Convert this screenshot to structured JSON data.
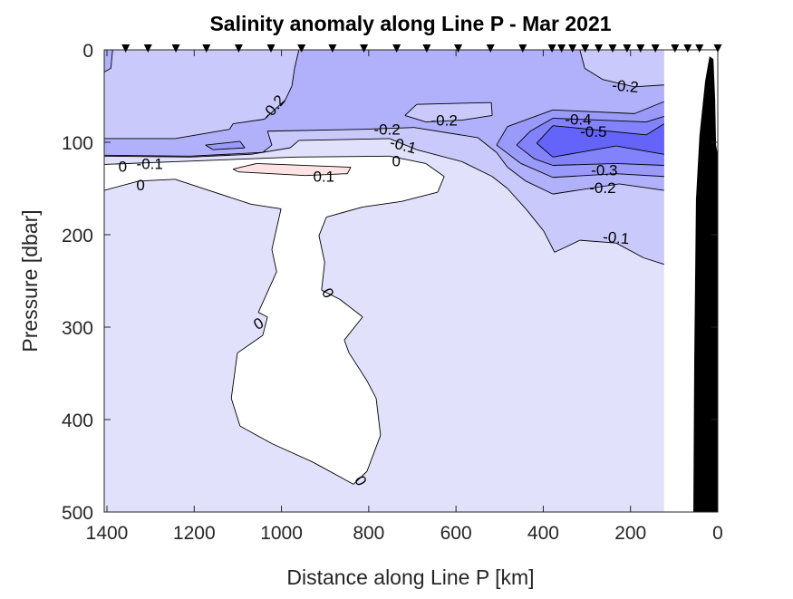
{
  "chart_data": {
    "type": "contour",
    "title": "Salinity anomaly along Line P - Mar 2021",
    "xlabel": "Distance along Line P [km]",
    "ylabel": "Pressure [dbar]",
    "xlim": [
      1406,
      0
    ],
    "ylim": [
      500,
      0
    ],
    "x_reversed": true,
    "y_reversed": true,
    "xticks": [
      1400,
      1200,
      1000,
      800,
      600,
      400,
      200,
      0
    ],
    "yticks": [
      0,
      100,
      200,
      300,
      400,
      500
    ],
    "grid": false,
    "data_extent_km": [
      123,
      1406
    ],
    "stations_km": [
      1357,
      1306,
      1242,
      1172,
      1098,
      1024,
      954,
      883,
      811,
      736,
      667,
      595,
      521,
      447,
      380,
      358,
      333,
      304,
      273,
      241,
      208,
      177,
      143,
      98,
      69,
      42,
      0
    ],
    "colors": {
      "anom_-0.1_0": "#e1e1fb",
      "anom_0_0.1": "#ffffff",
      "anom_gt_0.1": "#fde3e3",
      "anom_-0.2_-0.1": "#c9c9fb",
      "anom_-0.3_-0.2": "#b0b0fb",
      "anom_-0.4_-0.3": "#9a9afb",
      "anom_-0.5_-0.4": "#8282fb",
      "anom_lt_-0.5": "#6464fb",
      "bathymetry": "#000000"
    },
    "regions": [
      {
        "level": "-0.1_0",
        "color_key": "anom_-0.1_0",
        "points": [
          [
            1406,
            0
          ],
          [
            123,
            0
          ],
          [
            123,
            500
          ],
          [
            1406,
            500
          ]
        ]
      },
      {
        "level": "-0.2_-0.1",
        "color_key": "anom_-0.2_-0.1",
        "points": [
          [
            1406,
            115
          ],
          [
            1209,
            116
          ],
          [
            1070,
            113
          ],
          [
            980,
            106
          ],
          [
            960,
            98
          ],
          [
            752,
            96
          ],
          [
            690,
            108
          ],
          [
            586,
            121
          ],
          [
            517,
            137
          ],
          [
            482,
            150
          ],
          [
            440,
            172
          ],
          [
            399,
            196
          ],
          [
            374,
            219
          ],
          [
            316,
            206
          ],
          [
            233,
            209
          ],
          [
            170,
            225
          ],
          [
            123,
            232
          ],
          [
            123,
            0
          ],
          [
            1406,
            0
          ]
        ]
      },
      {
        "level": "0_0.1",
        "color_key": "anom_0_0.1",
        "points": [
          [
            1406,
            124
          ],
          [
            1244,
            121
          ],
          [
            966,
            116
          ],
          [
            752,
            115
          ],
          [
            669,
            123
          ],
          [
            627,
            137
          ],
          [
            642,
            154
          ],
          [
            725,
            164
          ],
          [
            814,
            170
          ],
          [
            897,
            181
          ],
          [
            914,
            201
          ],
          [
            901,
            230
          ],
          [
            908,
            260
          ],
          [
            866,
            270
          ],
          [
            814,
            289
          ],
          [
            856,
            314
          ],
          [
            845,
            328
          ],
          [
            804,
            358
          ],
          [
            783,
            377
          ],
          [
            773,
            417
          ],
          [
            804,
            456
          ],
          [
            835,
            470
          ],
          [
            928,
            446
          ],
          [
            1022,
            426
          ],
          [
            1095,
            407
          ],
          [
            1115,
            377
          ],
          [
            1101,
            328
          ],
          [
            1043,
            309
          ],
          [
            1032,
            289
          ],
          [
            1053,
            284
          ],
          [
            1011,
            240
          ],
          [
            1022,
            216
          ],
          [
            1001,
            172
          ],
          [
            1070,
            167
          ],
          [
            1244,
            140
          ],
          [
            1327,
            142
          ],
          [
            1406,
            152
          ]
        ]
      },
      {
        "level": "-0.3_-0.2",
        "color_key": "anom_-0.3_-0.2",
        "points": [
          [
            960,
            0
          ],
          [
            316,
            0
          ],
          [
            305,
            20
          ],
          [
            264,
            32
          ],
          [
            191,
            40
          ],
          [
            123,
            38
          ],
          [
            123,
            152
          ],
          [
            226,
            145
          ],
          [
            378,
            156
          ],
          [
            440,
            142
          ],
          [
            482,
            127
          ],
          [
            507,
            111
          ],
          [
            550,
            95
          ],
          [
            696,
            84
          ],
          [
            814,
            86
          ],
          [
            1032,
            88
          ],
          [
            1022,
            103
          ],
          [
            1043,
            111
          ],
          [
            1209,
            115
          ],
          [
            1406,
            114
          ],
          [
            1406,
            96
          ],
          [
            1244,
            96
          ],
          [
            1119,
            86
          ],
          [
            1111,
            80
          ],
          [
            1039,
            75
          ],
          [
            991,
            54
          ],
          [
            976,
            39
          ],
          [
            970,
            20
          ]
        ]
      },
      {
        "level": "-0.3_-0.2",
        "color_key": "anom_-0.3_-0.2",
        "points": [
          [
            1406,
            0
          ],
          [
            1387,
            0
          ],
          [
            1391,
            20
          ],
          [
            1406,
            24
          ]
        ]
      },
      {
        "level": "-0.2_-0.1",
        "color_key": "anom_-0.2_-0.1",
        "points": [
          [
            717,
            71
          ],
          [
            690,
            59
          ],
          [
            519,
            57
          ],
          [
            517,
            71
          ],
          [
            586,
            76
          ],
          [
            669,
            78
          ]
        ]
      },
      {
        "level": "-0.4_-0.3",
        "color_key": "anom_-0.4_-0.3",
        "points": [
          [
            123,
            56
          ],
          [
            191,
            69
          ],
          [
            378,
            65
          ],
          [
            482,
            83
          ],
          [
            507,
            103
          ],
          [
            451,
            123
          ],
          [
            378,
            138
          ],
          [
            233,
            134
          ],
          [
            123,
            137
          ]
        ]
      },
      {
        "level": "-0.4_-0.3",
        "color_key": "anom_-0.4_-0.3",
        "points": [
          [
            1174,
            103
          ],
          [
            1095,
            99
          ],
          [
            1084,
            106
          ],
          [
            1157,
            108
          ]
        ]
      },
      {
        "level": "-0.5_-0.4",
        "color_key": "anom_-0.5_-0.4",
        "points": [
          [
            123,
            72
          ],
          [
            164,
            78
          ],
          [
            378,
            74
          ],
          [
            430,
            88
          ],
          [
            461,
            103
          ],
          [
            420,
            118
          ],
          [
            378,
            125
          ],
          [
            233,
            123
          ],
          [
            123,
            125
          ]
        ]
      },
      {
        "level": "lt_-0.5",
        "color_key": "anom_lt_-0.5",
        "points": [
          [
            123,
            80
          ],
          [
            164,
            92
          ],
          [
            378,
            82
          ],
          [
            415,
            101
          ],
          [
            378,
            116
          ],
          [
            233,
            104
          ],
          [
            123,
            113
          ]
        ]
      },
      {
        "level": "gt_0.1",
        "color_key": "anom_gt_0.1",
        "points": [
          [
            1111,
            129
          ],
          [
            1057,
            123
          ],
          [
            841,
            127
          ],
          [
            849,
            134
          ],
          [
            945,
            136
          ],
          [
            1099,
            132
          ]
        ]
      }
    ],
    "bathymetry": [
      [
        56,
        500
      ],
      [
        54,
        338
      ],
      [
        50,
        162
      ],
      [
        42,
        93
      ],
      [
        29,
        34
      ],
      [
        19,
        7
      ],
      [
        10,
        10
      ],
      [
        6,
        54
      ],
      [
        4,
        103
      ],
      [
        0,
        113
      ],
      [
        0,
        500
      ]
    ],
    "contour_labels": [
      {
        "text": "-0.2",
        "km": 1019,
        "p": 62,
        "angle": -50
      },
      {
        "text": "-0.2",
        "km": 212,
        "p": 39,
        "angle": 5
      },
      {
        "text": "-0.2",
        "km": 627,
        "p": 76,
        "angle": 0
      },
      {
        "text": "-0.2",
        "km": 758,
        "p": 86,
        "angle": 0
      },
      {
        "text": "-0.1",
        "km": 721,
        "p": 103,
        "angle": 15
      },
      {
        "text": "0",
        "km": 737,
        "p": 120,
        "angle": 0
      },
      {
        "text": "-0.4",
        "km": 320,
        "p": 75,
        "angle": 0
      },
      {
        "text": "-0.5",
        "km": 285,
        "p": 88,
        "angle": 0
      },
      {
        "text": "-0.3",
        "km": 260,
        "p": 130,
        "angle": 0
      },
      {
        "text": "-0.2",
        "km": 264,
        "p": 149,
        "angle": 0
      },
      {
        "text": "-0.1",
        "km": 233,
        "p": 203,
        "angle": 5
      },
      {
        "text": "0.1",
        "km": 903,
        "p": 137,
        "angle": 0
      },
      {
        "text": "0",
        "km": 1364,
        "p": 126,
        "angle": 0
      },
      {
        "text": "-0.1",
        "km": 1302,
        "p": 123,
        "angle": 0
      },
      {
        "text": "0",
        "km": 1323,
        "p": 146,
        "angle": 0
      },
      {
        "text": "0",
        "km": 893,
        "p": 263,
        "angle": 60
      },
      {
        "text": "0",
        "km": 1053,
        "p": 296,
        "angle": -30
      },
      {
        "text": "0",
        "km": 818,
        "p": 466,
        "angle": 60
      }
    ]
  }
}
